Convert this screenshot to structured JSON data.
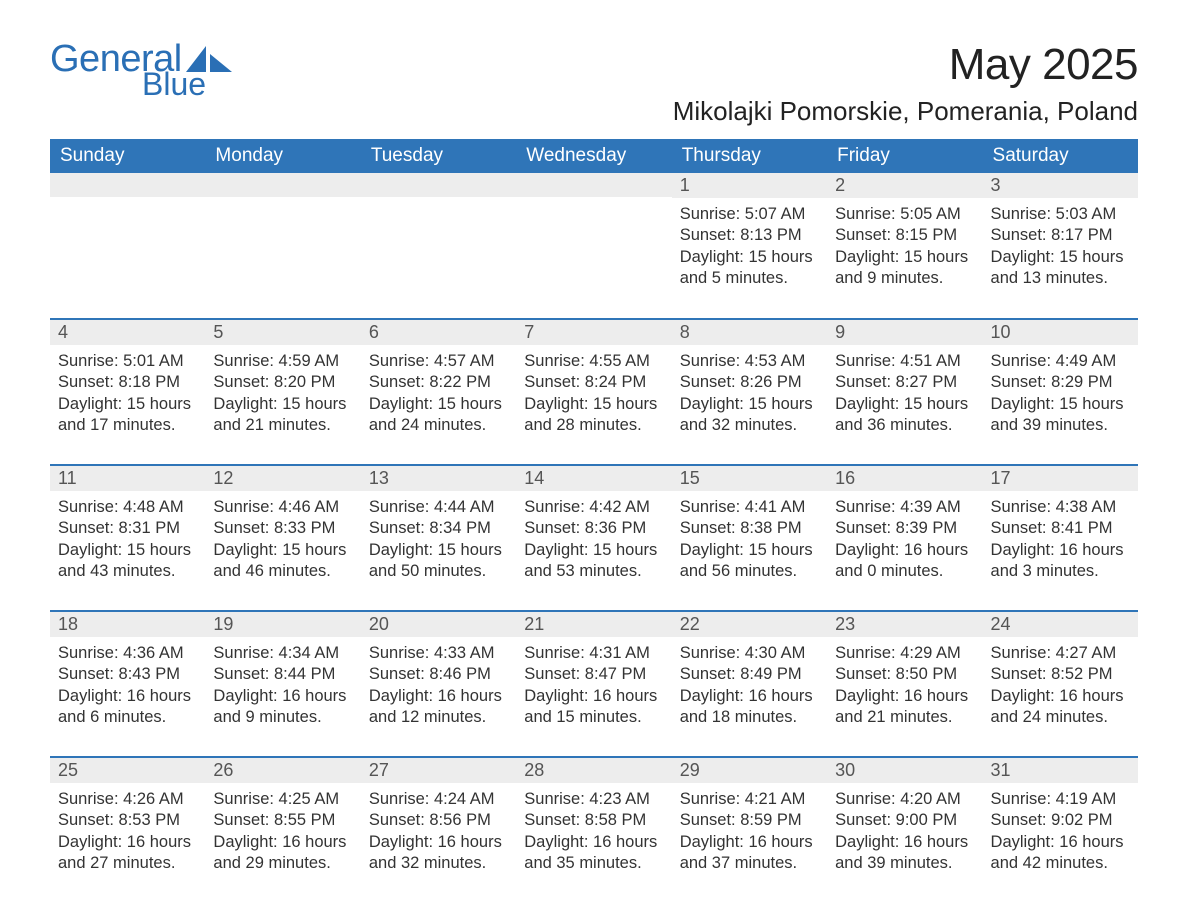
{
  "logo": {
    "word1": "General",
    "word2": "Blue",
    "brand_color": "#2a6fb5"
  },
  "title": "May 2025",
  "location": "Mikolajki Pomorskie, Pomerania, Poland",
  "colors": {
    "header_bg": "#2f75b8",
    "header_text": "#ffffff",
    "daynum_bg": "#ededed",
    "daynum_text": "#555555",
    "body_text": "#333333",
    "row_divider": "#2f75b8",
    "page_bg": "#ffffff"
  },
  "typography": {
    "title_fontsize": 44,
    "location_fontsize": 26,
    "header_fontsize": 19,
    "daynum_fontsize": 18,
    "details_fontsize": 16.5,
    "font_family": "Arial"
  },
  "layout": {
    "columns": 7,
    "rows": 5,
    "first_weekday_column": 4
  },
  "weekdays": [
    "Sunday",
    "Monday",
    "Tuesday",
    "Wednesday",
    "Thursday",
    "Friday",
    "Saturday"
  ],
  "weeks": [
    [
      null,
      null,
      null,
      null,
      {
        "n": "1",
        "sunrise": "Sunrise: 5:07 AM",
        "sunset": "Sunset: 8:13 PM",
        "daylight": "Daylight: 15 hours and 5 minutes."
      },
      {
        "n": "2",
        "sunrise": "Sunrise: 5:05 AM",
        "sunset": "Sunset: 8:15 PM",
        "daylight": "Daylight: 15 hours and 9 minutes."
      },
      {
        "n": "3",
        "sunrise": "Sunrise: 5:03 AM",
        "sunset": "Sunset: 8:17 PM",
        "daylight": "Daylight: 15 hours and 13 minutes."
      }
    ],
    [
      {
        "n": "4",
        "sunrise": "Sunrise: 5:01 AM",
        "sunset": "Sunset: 8:18 PM",
        "daylight": "Daylight: 15 hours and 17 minutes."
      },
      {
        "n": "5",
        "sunrise": "Sunrise: 4:59 AM",
        "sunset": "Sunset: 8:20 PM",
        "daylight": "Daylight: 15 hours and 21 minutes."
      },
      {
        "n": "6",
        "sunrise": "Sunrise: 4:57 AM",
        "sunset": "Sunset: 8:22 PM",
        "daylight": "Daylight: 15 hours and 24 minutes."
      },
      {
        "n": "7",
        "sunrise": "Sunrise: 4:55 AM",
        "sunset": "Sunset: 8:24 PM",
        "daylight": "Daylight: 15 hours and 28 minutes."
      },
      {
        "n": "8",
        "sunrise": "Sunrise: 4:53 AM",
        "sunset": "Sunset: 8:26 PM",
        "daylight": "Daylight: 15 hours and 32 minutes."
      },
      {
        "n": "9",
        "sunrise": "Sunrise: 4:51 AM",
        "sunset": "Sunset: 8:27 PM",
        "daylight": "Daylight: 15 hours and 36 minutes."
      },
      {
        "n": "10",
        "sunrise": "Sunrise: 4:49 AM",
        "sunset": "Sunset: 8:29 PM",
        "daylight": "Daylight: 15 hours and 39 minutes."
      }
    ],
    [
      {
        "n": "11",
        "sunrise": "Sunrise: 4:48 AM",
        "sunset": "Sunset: 8:31 PM",
        "daylight": "Daylight: 15 hours and 43 minutes."
      },
      {
        "n": "12",
        "sunrise": "Sunrise: 4:46 AM",
        "sunset": "Sunset: 8:33 PM",
        "daylight": "Daylight: 15 hours and 46 minutes."
      },
      {
        "n": "13",
        "sunrise": "Sunrise: 4:44 AM",
        "sunset": "Sunset: 8:34 PM",
        "daylight": "Daylight: 15 hours and 50 minutes."
      },
      {
        "n": "14",
        "sunrise": "Sunrise: 4:42 AM",
        "sunset": "Sunset: 8:36 PM",
        "daylight": "Daylight: 15 hours and 53 minutes."
      },
      {
        "n": "15",
        "sunrise": "Sunrise: 4:41 AM",
        "sunset": "Sunset: 8:38 PM",
        "daylight": "Daylight: 15 hours and 56 minutes."
      },
      {
        "n": "16",
        "sunrise": "Sunrise: 4:39 AM",
        "sunset": "Sunset: 8:39 PM",
        "daylight": "Daylight: 16 hours and 0 minutes."
      },
      {
        "n": "17",
        "sunrise": "Sunrise: 4:38 AM",
        "sunset": "Sunset: 8:41 PM",
        "daylight": "Daylight: 16 hours and 3 minutes."
      }
    ],
    [
      {
        "n": "18",
        "sunrise": "Sunrise: 4:36 AM",
        "sunset": "Sunset: 8:43 PM",
        "daylight": "Daylight: 16 hours and 6 minutes."
      },
      {
        "n": "19",
        "sunrise": "Sunrise: 4:34 AM",
        "sunset": "Sunset: 8:44 PM",
        "daylight": "Daylight: 16 hours and 9 minutes."
      },
      {
        "n": "20",
        "sunrise": "Sunrise: 4:33 AM",
        "sunset": "Sunset: 8:46 PM",
        "daylight": "Daylight: 16 hours and 12 minutes."
      },
      {
        "n": "21",
        "sunrise": "Sunrise: 4:31 AM",
        "sunset": "Sunset: 8:47 PM",
        "daylight": "Daylight: 16 hours and 15 minutes."
      },
      {
        "n": "22",
        "sunrise": "Sunrise: 4:30 AM",
        "sunset": "Sunset: 8:49 PM",
        "daylight": "Daylight: 16 hours and 18 minutes."
      },
      {
        "n": "23",
        "sunrise": "Sunrise: 4:29 AM",
        "sunset": "Sunset: 8:50 PM",
        "daylight": "Daylight: 16 hours and 21 minutes."
      },
      {
        "n": "24",
        "sunrise": "Sunrise: 4:27 AM",
        "sunset": "Sunset: 8:52 PM",
        "daylight": "Daylight: 16 hours and 24 minutes."
      }
    ],
    [
      {
        "n": "25",
        "sunrise": "Sunrise: 4:26 AM",
        "sunset": "Sunset: 8:53 PM",
        "daylight": "Daylight: 16 hours and 27 minutes."
      },
      {
        "n": "26",
        "sunrise": "Sunrise: 4:25 AM",
        "sunset": "Sunset: 8:55 PM",
        "daylight": "Daylight: 16 hours and 29 minutes."
      },
      {
        "n": "27",
        "sunrise": "Sunrise: 4:24 AM",
        "sunset": "Sunset: 8:56 PM",
        "daylight": "Daylight: 16 hours and 32 minutes."
      },
      {
        "n": "28",
        "sunrise": "Sunrise: 4:23 AM",
        "sunset": "Sunset: 8:58 PM",
        "daylight": "Daylight: 16 hours and 35 minutes."
      },
      {
        "n": "29",
        "sunrise": "Sunrise: 4:21 AM",
        "sunset": "Sunset: 8:59 PM",
        "daylight": "Daylight: 16 hours and 37 minutes."
      },
      {
        "n": "30",
        "sunrise": "Sunrise: 4:20 AM",
        "sunset": "Sunset: 9:00 PM",
        "daylight": "Daylight: 16 hours and 39 minutes."
      },
      {
        "n": "31",
        "sunrise": "Sunrise: 4:19 AM",
        "sunset": "Sunset: 9:02 PM",
        "daylight": "Daylight: 16 hours and 42 minutes."
      }
    ]
  ]
}
